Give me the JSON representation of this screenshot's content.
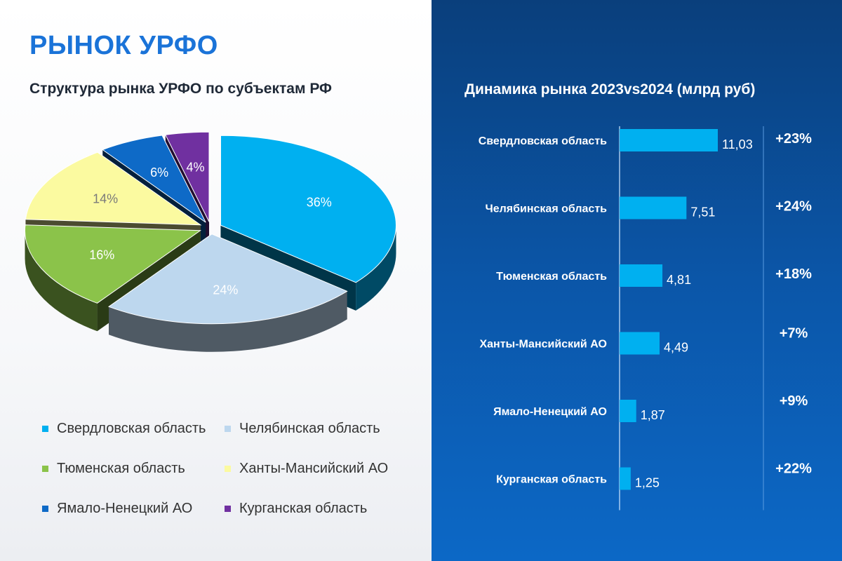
{
  "page": {
    "title": "РЫНОК УРФО",
    "pie_title": "Структура рынка УРФО по субъектам РФ",
    "bar_title": "Динамика рынка 2023vs2024 (млрд руб)"
  },
  "colors": {
    "title": "#1a73d8",
    "right_panel": "#0b56a8",
    "bar": "#00b0f0"
  },
  "chart_data": [
    {
      "type": "pie",
      "title": "Структура рынка УРФО по субъектам РФ",
      "legend_position": "bottom",
      "slices": [
        {
          "label": "Свердловская область",
          "value": 36,
          "value_label": "36%",
          "color": "#00b0f0"
        },
        {
          "label": "Челябинская область",
          "value": 24,
          "value_label": "24%",
          "color": "#bdd7ee"
        },
        {
          "label": "Тюменская область",
          "value": 16,
          "value_label": "16%",
          "color": "#8bc34a"
        },
        {
          "label": "Ханты-Мансийский АО",
          "value": 14,
          "value_label": "14%",
          "color": "#fbfaa0"
        },
        {
          "label": "Ямало-Ненецкий АО",
          "value": 6,
          "value_label": "6%",
          "color": "#0e6ac7"
        },
        {
          "label": "Курганская область",
          "value": 4,
          "value_label": "4%",
          "color": "#7030a0"
        }
      ]
    },
    {
      "type": "bar",
      "orientation": "horizontal",
      "title": "Динамика рынка 2023vs2024 (млрд руб)",
      "xlim": [
        0,
        11.03
      ],
      "categories": [
        "Свердловская область",
        "Челябинская область",
        "Тюменская область",
        "Ханты-Мансийский АО",
        "Ямало-Ненецкий АО",
        "Курганская область"
      ],
      "values": [
        11.03,
        7.51,
        4.81,
        4.49,
        1.87,
        1.25
      ],
      "value_labels": [
        "11,03",
        "7,51",
        "4,81",
        "4,49",
        "1,87",
        "1,25"
      ],
      "growth": [
        "+23%",
        "+24%",
        "+18%",
        "+7%",
        "+9%",
        "+22%"
      ]
    }
  ]
}
